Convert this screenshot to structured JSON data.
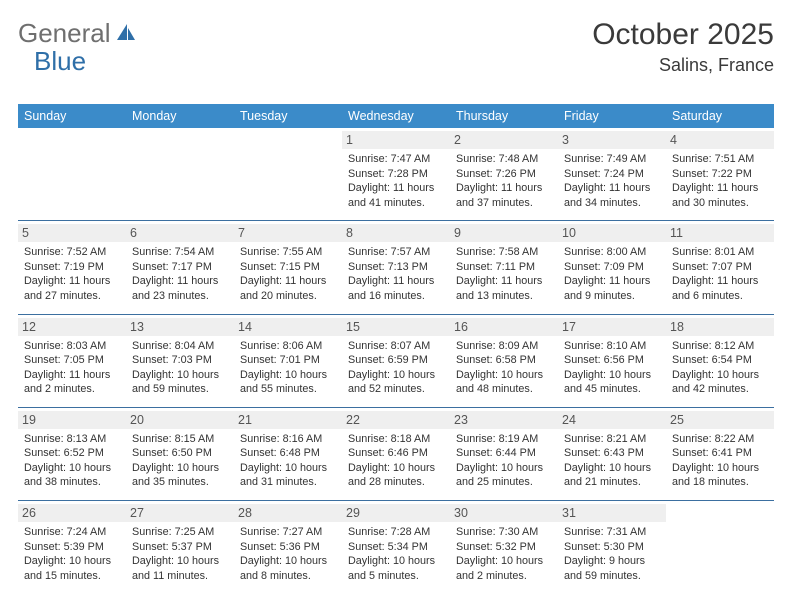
{
  "brand": {
    "part1": "General",
    "part2": "Blue"
  },
  "title": "October 2025",
  "location": "Salins, France",
  "colors": {
    "header_bg": "#3b8bc9",
    "header_text": "#ffffff",
    "rule": "#3b6fa0",
    "daynum_bg": "#efefef",
    "brand_gray": "#6f6f6f",
    "brand_blue": "#2f6fa8"
  },
  "daysOfWeek": [
    "Sunday",
    "Monday",
    "Tuesday",
    "Wednesday",
    "Thursday",
    "Friday",
    "Saturday"
  ],
  "weeks": [
    [
      {
        "n": "",
        "sr": "",
        "ss": "",
        "dl": ""
      },
      {
        "n": "",
        "sr": "",
        "ss": "",
        "dl": ""
      },
      {
        "n": "",
        "sr": "",
        "ss": "",
        "dl": ""
      },
      {
        "n": "1",
        "sr": "7:47 AM",
        "ss": "7:28 PM",
        "dl": "11 hours and 41 minutes."
      },
      {
        "n": "2",
        "sr": "7:48 AM",
        "ss": "7:26 PM",
        "dl": "11 hours and 37 minutes."
      },
      {
        "n": "3",
        "sr": "7:49 AM",
        "ss": "7:24 PM",
        "dl": "11 hours and 34 minutes."
      },
      {
        "n": "4",
        "sr": "7:51 AM",
        "ss": "7:22 PM",
        "dl": "11 hours and 30 minutes."
      }
    ],
    [
      {
        "n": "5",
        "sr": "7:52 AM",
        "ss": "7:19 PM",
        "dl": "11 hours and 27 minutes."
      },
      {
        "n": "6",
        "sr": "7:54 AM",
        "ss": "7:17 PM",
        "dl": "11 hours and 23 minutes."
      },
      {
        "n": "7",
        "sr": "7:55 AM",
        "ss": "7:15 PM",
        "dl": "11 hours and 20 minutes."
      },
      {
        "n": "8",
        "sr": "7:57 AM",
        "ss": "7:13 PM",
        "dl": "11 hours and 16 minutes."
      },
      {
        "n": "9",
        "sr": "7:58 AM",
        "ss": "7:11 PM",
        "dl": "11 hours and 13 minutes."
      },
      {
        "n": "10",
        "sr": "8:00 AM",
        "ss": "7:09 PM",
        "dl": "11 hours and 9 minutes."
      },
      {
        "n": "11",
        "sr": "8:01 AM",
        "ss": "7:07 PM",
        "dl": "11 hours and 6 minutes."
      }
    ],
    [
      {
        "n": "12",
        "sr": "8:03 AM",
        "ss": "7:05 PM",
        "dl": "11 hours and 2 minutes."
      },
      {
        "n": "13",
        "sr": "8:04 AM",
        "ss": "7:03 PM",
        "dl": "10 hours and 59 minutes."
      },
      {
        "n": "14",
        "sr": "8:06 AM",
        "ss": "7:01 PM",
        "dl": "10 hours and 55 minutes."
      },
      {
        "n": "15",
        "sr": "8:07 AM",
        "ss": "6:59 PM",
        "dl": "10 hours and 52 minutes."
      },
      {
        "n": "16",
        "sr": "8:09 AM",
        "ss": "6:58 PM",
        "dl": "10 hours and 48 minutes."
      },
      {
        "n": "17",
        "sr": "8:10 AM",
        "ss": "6:56 PM",
        "dl": "10 hours and 45 minutes."
      },
      {
        "n": "18",
        "sr": "8:12 AM",
        "ss": "6:54 PM",
        "dl": "10 hours and 42 minutes."
      }
    ],
    [
      {
        "n": "19",
        "sr": "8:13 AM",
        "ss": "6:52 PM",
        "dl": "10 hours and 38 minutes."
      },
      {
        "n": "20",
        "sr": "8:15 AM",
        "ss": "6:50 PM",
        "dl": "10 hours and 35 minutes."
      },
      {
        "n": "21",
        "sr": "8:16 AM",
        "ss": "6:48 PM",
        "dl": "10 hours and 31 minutes."
      },
      {
        "n": "22",
        "sr": "8:18 AM",
        "ss": "6:46 PM",
        "dl": "10 hours and 28 minutes."
      },
      {
        "n": "23",
        "sr": "8:19 AM",
        "ss": "6:44 PM",
        "dl": "10 hours and 25 minutes."
      },
      {
        "n": "24",
        "sr": "8:21 AM",
        "ss": "6:43 PM",
        "dl": "10 hours and 21 minutes."
      },
      {
        "n": "25",
        "sr": "8:22 AM",
        "ss": "6:41 PM",
        "dl": "10 hours and 18 minutes."
      }
    ],
    [
      {
        "n": "26",
        "sr": "7:24 AM",
        "ss": "5:39 PM",
        "dl": "10 hours and 15 minutes."
      },
      {
        "n": "27",
        "sr": "7:25 AM",
        "ss": "5:37 PM",
        "dl": "10 hours and 11 minutes."
      },
      {
        "n": "28",
        "sr": "7:27 AM",
        "ss": "5:36 PM",
        "dl": "10 hours and 8 minutes."
      },
      {
        "n": "29",
        "sr": "7:28 AM",
        "ss": "5:34 PM",
        "dl": "10 hours and 5 minutes."
      },
      {
        "n": "30",
        "sr": "7:30 AM",
        "ss": "5:32 PM",
        "dl": "10 hours and 2 minutes."
      },
      {
        "n": "31",
        "sr": "7:31 AM",
        "ss": "5:30 PM",
        "dl": "9 hours and 59 minutes."
      },
      {
        "n": "",
        "sr": "",
        "ss": "",
        "dl": ""
      }
    ]
  ],
  "labels": {
    "sunrise": "Sunrise:",
    "sunset": "Sunset:",
    "daylight": "Daylight:"
  }
}
